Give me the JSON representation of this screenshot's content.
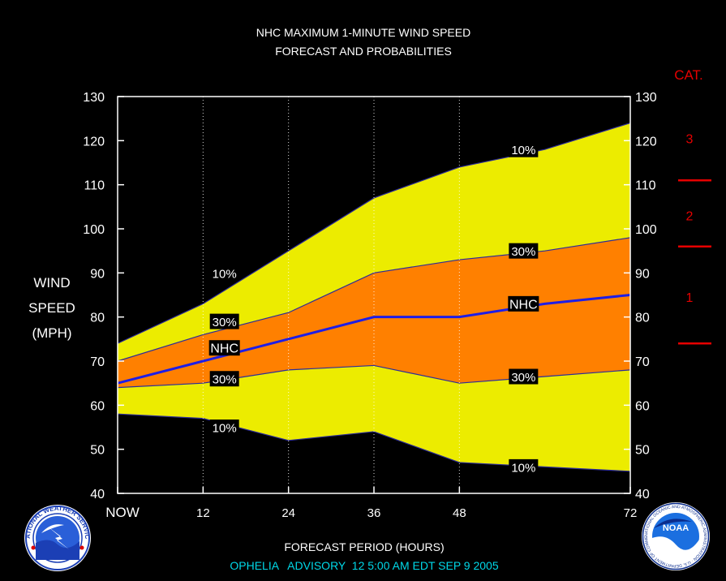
{
  "title_line1": "NHC MAXIMUM 1-MINUTE WIND SPEED",
  "title_line2": "FORECAST AND PROBABILITIES",
  "ylabel_lines": [
    "WIND",
    "SPEED",
    "(MPH)"
  ],
  "xlabel": "FORECAST PERIOD (HOURS)",
  "footer": "OPHELIA   ADVISORY  12 5:00 AM EDT SEP 9 2005",
  "logos": {
    "left": "NATIONAL WEATHER SERVICE",
    "right": "NOAA",
    "right_ring": "NATIONAL OCEANIC AND ATMOSPHERIC ADMINISTRATION · U.S. DEPARTMENT OF COMMERCE"
  },
  "category_header": "CAT.",
  "colors": {
    "background": "#000000",
    "outer_band": "#ECEC00",
    "inner_band": "#FF8000",
    "nhc_line": "#1E1EE6",
    "band_edge": "#2C2C9A",
    "category": "#E60000",
    "footer": "#00D8E8",
    "text": "#FFFFFF"
  },
  "chart_data": {
    "type": "area",
    "x_ticks": [
      0,
      12,
      24,
      36,
      48,
      72
    ],
    "x_tick_labels": [
      "NOW",
      "12",
      "24",
      "36",
      "48",
      "72"
    ],
    "xlim": [
      0,
      72
    ],
    "ylim": [
      40,
      130
    ],
    "y_ticks": [
      40,
      50,
      60,
      70,
      80,
      90,
      100,
      110,
      120,
      130
    ],
    "gridlines_vertical_at": [
      12,
      24,
      36,
      48
    ],
    "series": [
      {
        "name": "10%",
        "x": [
          0,
          12,
          24,
          36,
          48,
          60,
          72
        ],
        "values": [
          74,
          83,
          95,
          107,
          114,
          118,
          124
        ]
      },
      {
        "name": "30%",
        "x": [
          0,
          12,
          24,
          36,
          48,
          60,
          72
        ],
        "values": [
          70,
          76,
          81,
          90,
          93,
          95,
          98
        ]
      },
      {
        "name": "NHC",
        "x": [
          0,
          12,
          24,
          36,
          48,
          60,
          72
        ],
        "values": [
          65,
          70,
          75,
          80,
          80,
          83,
          85
        ]
      },
      {
        "name": "30%",
        "x": [
          0,
          12,
          24,
          36,
          48,
          60,
          72
        ],
        "values": [
          64,
          65,
          68,
          69,
          65,
          66.5,
          68
        ]
      },
      {
        "name": "10%",
        "x": [
          0,
          12,
          24,
          36,
          48,
          60,
          72
        ],
        "values": [
          58,
          57,
          52,
          54,
          47,
          46,
          45
        ]
      }
    ],
    "band_labels": [
      {
        "text": "10%",
        "x": 15,
        "y": 90
      },
      {
        "text": "30%",
        "x": 15,
        "y": 79
      },
      {
        "text": "NHC",
        "x": 15,
        "y": 73
      },
      {
        "text": "30%",
        "x": 15,
        "y": 66
      },
      {
        "text": "10%",
        "x": 15,
        "y": 55
      },
      {
        "text": "10%",
        "x": 57,
        "y": 118
      },
      {
        "text": "30%",
        "x": 57,
        "y": 95
      },
      {
        "text": "NHC",
        "x": 57,
        "y": 83
      },
      {
        "text": "30%",
        "x": 57,
        "y": 66.5
      },
      {
        "text": "10%",
        "x": 57,
        "y": 46
      }
    ],
    "categories": [
      {
        "label": "1",
        "from": 74,
        "to": 95
      },
      {
        "label": "2",
        "from": 96,
        "to": 110
      },
      {
        "label": "3",
        "from": 111,
        "to": 130
      }
    ],
    "category_lines": [
      74,
      96,
      111
    ]
  }
}
